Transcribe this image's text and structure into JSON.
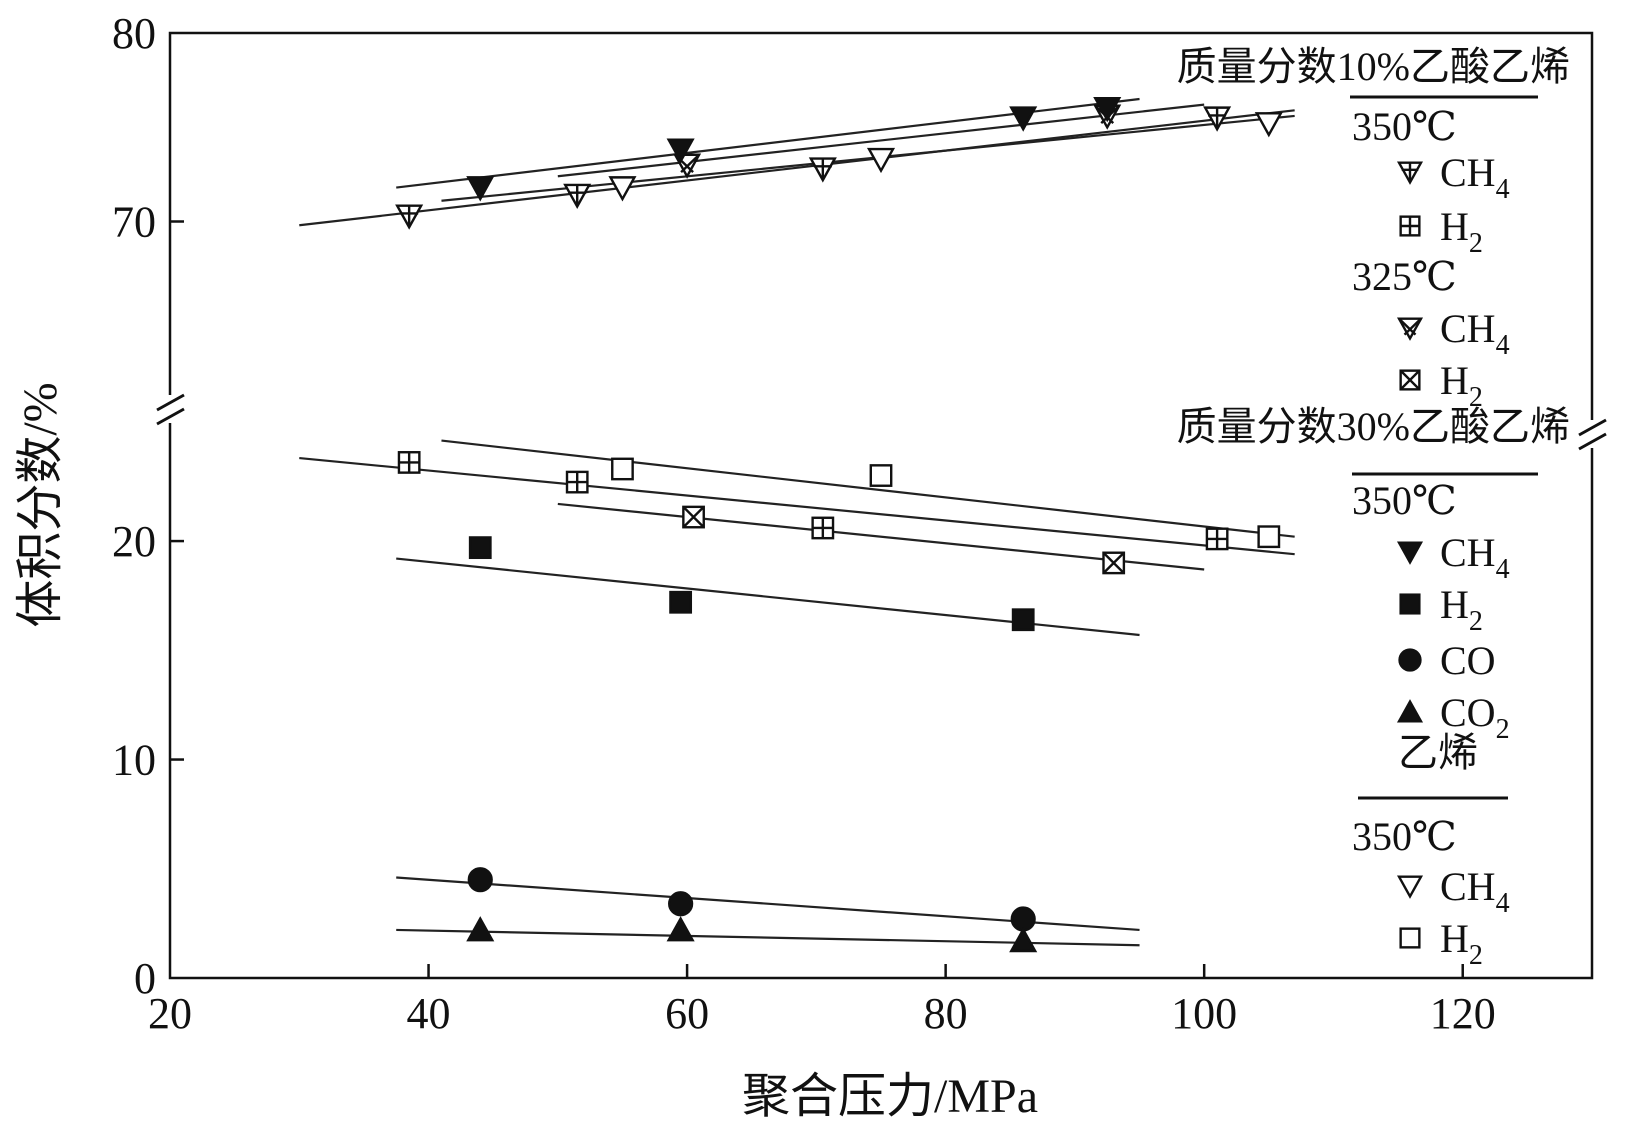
{
  "chart_data": {
    "type": "scatter",
    "title": "",
    "xlabel": "聚合压力/MPa",
    "ylabel": "体积分数/%",
    "x_ticks": [
      "20",
      "40",
      "60",
      "80",
      "100",
      "120"
    ],
    "y_ticks_lower": [
      "0",
      "10",
      "20"
    ],
    "y_ticks_upper": [
      "70",
      "80"
    ],
    "xlim": [
      20,
      130
    ],
    "ylim_lower": [
      0,
      26
    ],
    "ylim_upper": [
      60,
      80
    ],
    "axis_break": true,
    "grid": false,
    "legend_position": "right",
    "legend": {
      "groups": [
        {
          "heading": "质量分数10%乙酸乙烯",
          "entries": [
            {
              "label": "350℃",
              "kind": "temp"
            },
            {
              "label": "CH",
              "sub": "4",
              "marker": "tri-down-cross",
              "kind": "item"
            },
            {
              "label": "H",
              "sub": "2",
              "marker": "square-plus",
              "kind": "item"
            },
            {
              "label": "325℃",
              "kind": "temp"
            },
            {
              "label": "CH",
              "sub": "4",
              "marker": "tri-down-x",
              "kind": "item"
            },
            {
              "label": "H",
              "sub": "2",
              "marker": "square-x",
              "kind": "item"
            }
          ]
        },
        {
          "heading": "质量分数30%乙酸乙烯",
          "entries": [
            {
              "label": "350℃",
              "kind": "temp"
            },
            {
              "label": "CH",
              "sub": "4",
              "marker": "tri-down-filled",
              "kind": "item"
            },
            {
              "label": "H",
              "sub": "2",
              "marker": "square-filled",
              "kind": "item"
            },
            {
              "label": "CO",
              "sub": "",
              "marker": "circle-filled",
              "kind": "item"
            },
            {
              "label": "CO",
              "sub": "2",
              "marker": "tri-up-filled",
              "kind": "item"
            }
          ]
        },
        {
          "heading": "乙烯",
          "entries": [
            {
              "label": "350℃",
              "kind": "temp"
            },
            {
              "label": "CH",
              "sub": "4",
              "marker": "tri-down-open",
              "kind": "item"
            },
            {
              "label": "H",
              "sub": "2",
              "marker": "square-open",
              "kind": "item"
            }
          ]
        }
      ]
    },
    "series": [
      {
        "name": "质量分数10%乙酸乙烯 350℃ CH4",
        "marker": "tri-down-cross",
        "points": [
          [
            38.5,
            70.3
          ],
          [
            51.5,
            71.4
          ],
          [
            70.5,
            72.8
          ],
          [
            101,
            75.5
          ]
        ],
        "fit": [
          [
            30,
            69.8
          ],
          [
            107,
            75.9
          ]
        ]
      },
      {
        "name": "质量分数10%乙酸乙烯 350℃ H2",
        "marker": "square-plus",
        "points": [
          [
            38.5,
            23.6
          ],
          [
            51.5,
            22.7
          ],
          [
            70.5,
            20.6
          ],
          [
            101,
            20.1
          ]
        ],
        "fit": [
          [
            30,
            23.8
          ],
          [
            107,
            19.4
          ]
        ]
      },
      {
        "name": "质量分数10%乙酸乙烯 325℃ CH4",
        "marker": "tri-down-x",
        "points": [
          [
            60,
            73.0
          ],
          [
            92.5,
            75.6
          ]
        ],
        "fit": [
          [
            50,
            72.4
          ],
          [
            100,
            76.2
          ]
        ]
      },
      {
        "name": "质量分数10%乙酸乙烯 325℃ H2",
        "marker": "square-x",
        "points": [
          [
            60.5,
            21.1
          ],
          [
            93,
            19.0
          ]
        ],
        "fit": [
          [
            50,
            21.7
          ],
          [
            100,
            18.7
          ]
        ]
      },
      {
        "name": "质量分数30%乙酸乙烯 350℃ CH4",
        "marker": "tri-down-filled",
        "points": [
          [
            44,
            71.8
          ],
          [
            59.5,
            73.8
          ],
          [
            86,
            75.5
          ],
          [
            92.5,
            76.0
          ]
        ],
        "fit": [
          [
            37.5,
            71.8
          ],
          [
            95,
            76.5
          ]
        ]
      },
      {
        "name": "质量分数30%乙酸乙烯 350℃ H2",
        "marker": "square-filled",
        "points": [
          [
            44,
            19.7
          ],
          [
            59.5,
            17.2
          ],
          [
            86,
            16.4
          ]
        ],
        "fit": [
          [
            37.5,
            19.2
          ],
          [
            95,
            15.7
          ]
        ]
      },
      {
        "name": "质量分数30%乙酸乙烯 350℃ CO",
        "marker": "circle-filled",
        "points": [
          [
            44,
            4.5
          ],
          [
            59.5,
            3.4
          ],
          [
            86,
            2.7
          ]
        ],
        "fit": [
          [
            37.5,
            4.6
          ],
          [
            95,
            2.2
          ]
        ]
      },
      {
        "name": "质量分数30%乙酸乙烯 350℃ CO2",
        "marker": "tri-up-filled",
        "points": [
          [
            44,
            2.2
          ],
          [
            59.5,
            2.2
          ],
          [
            86,
            1.7
          ]
        ],
        "fit": [
          [
            37.5,
            2.2
          ],
          [
            95,
            1.5
          ]
        ]
      },
      {
        "name": "乙烯 350℃ CH4",
        "marker": "tri-down-open",
        "points": [
          [
            55,
            71.8
          ],
          [
            75,
            73.3
          ],
          [
            105,
            75.2
          ]
        ],
        "fit": [
          [
            41,
            71.1
          ],
          [
            107,
            75.6
          ]
        ]
      },
      {
        "name": "乙烯 350℃ H2",
        "marker": "square-open",
        "points": [
          [
            55,
            23.3
          ],
          [
            75,
            23.0
          ],
          [
            105,
            20.2
          ]
        ],
        "fit": [
          [
            41,
            24.6
          ],
          [
            107,
            20.2
          ]
        ]
      }
    ]
  }
}
